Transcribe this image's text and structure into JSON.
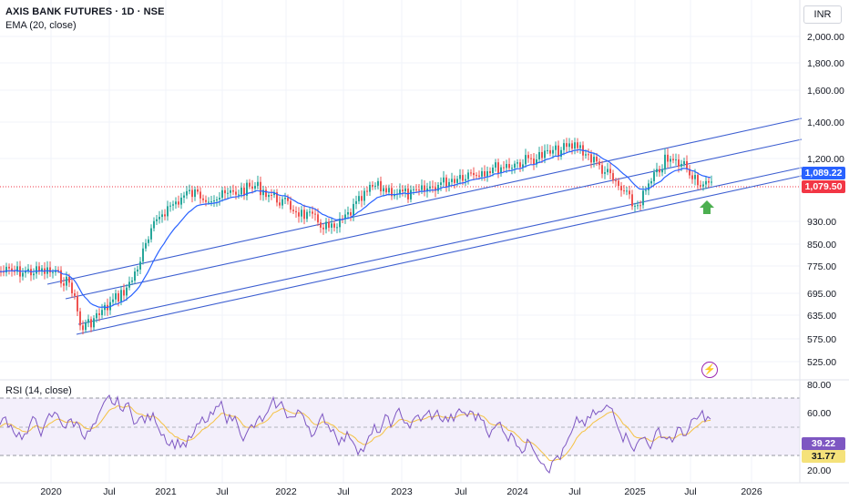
{
  "header": {
    "title": "AXIS BANK FUTURES · 1D · NSE",
    "indicator": "EMA (20, close)",
    "currency": "INR"
  },
  "rsi": {
    "title": "RSI (14, close)"
  },
  "price_axis": {
    "ticks": [
      "2,000.00",
      "1,800.00",
      "1,600.00",
      "1,400.00",
      "1,200.00",
      "930.00",
      "850.00",
      "775.00",
      "695.00",
      "635.00",
      "575.00",
      "525.00"
    ]
  },
  "rsi_axis": {
    "ticks": [
      "80.00",
      "60.00",
      "20.00"
    ]
  },
  "time_axis": {
    "ticks": [
      "2020",
      "Jul",
      "2021",
      "Jul",
      "2022",
      "Jul",
      "2023",
      "Jul",
      "2024",
      "Jul",
      "2025",
      "Jul",
      "2026"
    ]
  },
  "tags": {
    "ema_value": "1,089.22",
    "last_price": "1,079.50",
    "rsi_value": "39.22",
    "rsi_ma_value": "31.77"
  },
  "colors": {
    "ema_line": "#2962ff",
    "channel_line": "#3d5fd1",
    "up_candle": "#26a69a",
    "down_candle": "#ef5350",
    "last_price_tag": "#f23645",
    "ema_tag": "#2962ff",
    "rsi_line": "#7e57c2",
    "rsi_ma": "#f5c242",
    "arrow": "#4caf50"
  },
  "icons": [
    "up-arrow-icon",
    "lightning-icon"
  ],
  "chart_data": {
    "type": "candlestick",
    "title": "AXIS BANK FUTURES · 1D · NSE",
    "ylabel": "INR",
    "ylim": [
      500,
      2100
    ],
    "scale": "log",
    "approx_close_path": [
      {
        "x": "2020-01",
        "y": 760
      },
      {
        "x": "2020-03",
        "y": 720
      },
      {
        "x": "2020-04",
        "y": 600
      },
      {
        "x": "2020-06",
        "y": 640
      },
      {
        "x": "2020-09",
        "y": 720
      },
      {
        "x": "2020-12",
        "y": 960
      },
      {
        "x": "2021-03",
        "y": 1050
      },
      {
        "x": "2021-06",
        "y": 1030
      },
      {
        "x": "2021-10",
        "y": 1080
      },
      {
        "x": "2022-02",
        "y": 980
      },
      {
        "x": "2022-06",
        "y": 900
      },
      {
        "x": "2022-10",
        "y": 1080
      },
      {
        "x": "2023-02",
        "y": 1040
      },
      {
        "x": "2023-07",
        "y": 1130
      },
      {
        "x": "2024-01",
        "y": 1190
      },
      {
        "x": "2024-07",
        "y": 1280
      },
      {
        "x": "2024-10",
        "y": 1140
      },
      {
        "x": "2025-01",
        "y": 990
      },
      {
        "x": "2025-04",
        "y": 1200
      },
      {
        "x": "2025-06",
        "y": 1180
      },
      {
        "x": "2025-08",
        "y": 1079.5
      }
    ],
    "rsi_ylim": [
      10,
      85
    ]
  }
}
